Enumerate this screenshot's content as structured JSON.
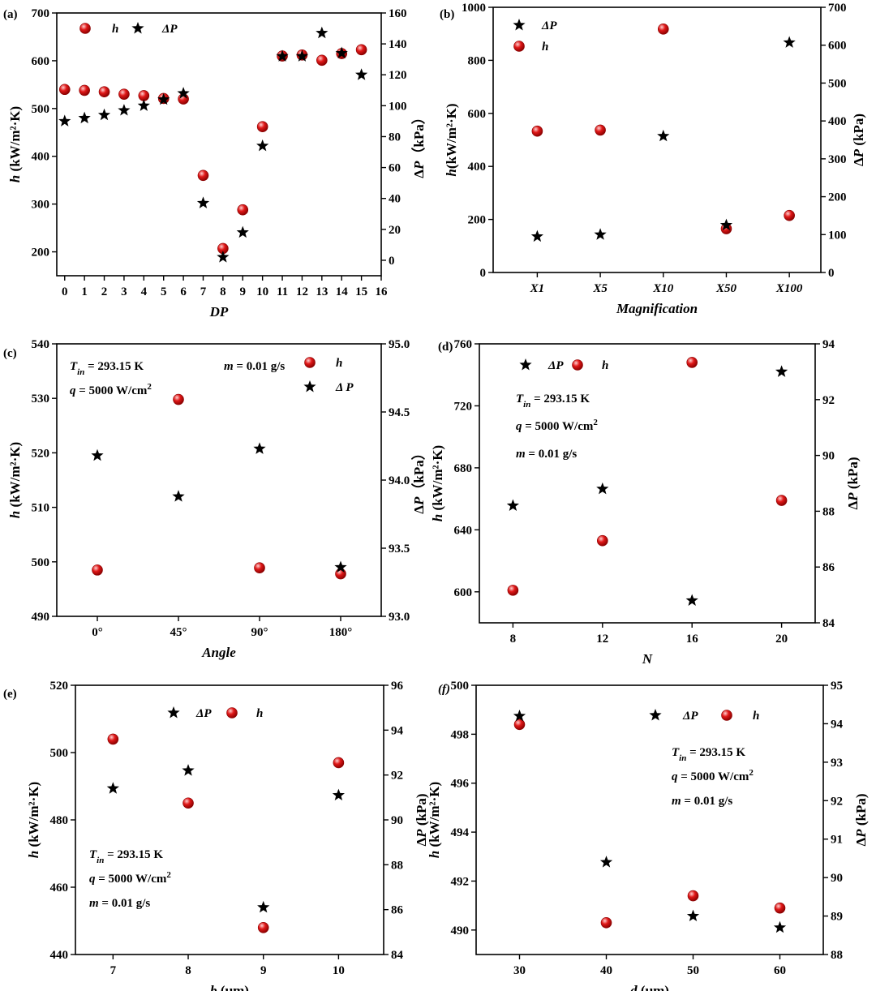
{
  "chart_data": [
    {
      "type": "scatter",
      "panel_label": "(a)",
      "x": [
        0,
        1,
        2,
        3,
        4,
        5,
        6,
        7,
        8,
        9,
        10,
        11,
        12,
        13,
        14,
        15
      ],
      "xticks": [
        "0",
        "1",
        "2",
        "3",
        "4",
        "5",
        "6",
        "7",
        "8",
        "9",
        "10",
        "11",
        "12",
        "13",
        "14",
        "15",
        "16"
      ],
      "xlim": [
        -0.4,
        16
      ],
      "xlabel": "DP",
      "ylabel_left": "h (kW/m²·K)",
      "ylabel_right": "ΔP（kPa）",
      "ylim_left": [
        150,
        700
      ],
      "yticks_left": [
        "200",
        "300",
        "400",
        "500",
        "600",
        "700"
      ],
      "ylim_right": [
        -10,
        160
      ],
      "yticks_right": [
        "0",
        "20",
        "40",
        "60",
        "80",
        "100",
        "120",
        "140",
        "160"
      ],
      "series": [
        {
          "name": "h",
          "axis": "left",
          "marker": "sphere",
          "values": [
            540,
            538,
            535,
            530,
            527,
            521,
            520,
            360,
            207,
            288,
            462,
            610,
            612,
            601,
            615,
            623
          ]
        },
        {
          "name": "ΔP",
          "axis": "right",
          "marker": "star",
          "values": [
            90,
            92,
            94,
            97,
            100,
            104,
            108,
            37,
            2,
            18,
            74,
            132,
            132,
            147,
            134,
            120
          ]
        }
      ],
      "legend": [
        "h",
        "ΔP"
      ],
      "legend_position": "top-left",
      "annotations": []
    },
    {
      "type": "scatter",
      "panel_label": "(b)",
      "x": [
        0,
        1,
        2,
        3,
        4
      ],
      "xticks": [
        "X1",
        "X5",
        "X10",
        "X50",
        "X100"
      ],
      "xlim": [
        -0.7,
        4.5
      ],
      "xlabel": "Magnification",
      "ylabel_left": "h(kW/m²·K)",
      "ylabel_right": "ΔP (kPa)",
      "ylim_left": [
        0,
        1000
      ],
      "yticks_left": [
        "0",
        "200",
        "400",
        "600",
        "800",
        "1000"
      ],
      "ylim_right": [
        0,
        700
      ],
      "yticks_right": [
        "0",
        "100",
        "200",
        "300",
        "400",
        "500",
        "600",
        "700"
      ],
      "series": [
        {
          "name": "h",
          "axis": "left",
          "marker": "sphere",
          "values": [
            533,
            537,
            918,
            165,
            215
          ]
        },
        {
          "name": "ΔP",
          "axis": "right",
          "marker": "star",
          "values": [
            95,
            100,
            360,
            125,
            607
          ]
        }
      ],
      "legend": [
        "ΔP",
        "h"
      ],
      "legend_position": "top-left",
      "annotations": []
    },
    {
      "type": "scatter",
      "panel_label": "(c)",
      "x": [
        0,
        1,
        2,
        3
      ],
      "xticks": [
        "0°",
        "45°",
        "90°",
        "180°"
      ],
      "xlim": [
        -0.5,
        3.5
      ],
      "xlabel": "Angle",
      "ylabel_left": "h (kW/m²·K)",
      "ylabel_right": "ΔP（kPa）",
      "ylim_left": [
        490,
        540
      ],
      "yticks_left": [
        "490",
        "500",
        "510",
        "520",
        "530",
        "540"
      ],
      "ylim_right": [
        93.0,
        95.0
      ],
      "yticks_right": [
        "93.0",
        "93.5",
        "94.0",
        "94.5",
        "95.0"
      ],
      "series": [
        {
          "name": "h",
          "axis": "left",
          "marker": "sphere",
          "values": [
            498.5,
            529.8,
            498.9,
            497.8
          ]
        },
        {
          "name": "Δ P",
          "axis": "right",
          "marker": "star",
          "values": [
            94.18,
            93.88,
            94.23,
            93.36
          ]
        }
      ],
      "legend": [
        "h",
        "Δ P"
      ],
      "legend_position": "top-right",
      "annotations": [
        {
          "parts": [
            [
              "T",
              "i"
            ],
            [
              "in",
              "s"
            ],
            [
              " = 293.15 K",
              "n"
            ]
          ],
          "row": 0,
          "col": 0
        },
        {
          "parts": [
            [
              "m",
              "i"
            ],
            [
              " = 0.01 g/s",
              "n"
            ]
          ],
          "row": 0,
          "col": 1
        },
        {
          "parts": [
            [
              "q",
              "i"
            ],
            [
              " = 5000 W/cm",
              "n"
            ],
            [
              "2",
              "p"
            ]
          ],
          "row": 1,
          "col": 0
        }
      ]
    },
    {
      "type": "scatter",
      "panel_label": "(d)",
      "x": [
        8,
        12,
        16,
        20
      ],
      "xticks": [
        "8",
        "12",
        "16",
        "20"
      ],
      "xlim": [
        6.5,
        21.5
      ],
      "xlabel": "N",
      "ylabel_left": "h (kW/m²·K)",
      "ylabel_right": "ΔP (kPa)",
      "ylim_left": [
        580,
        760
      ],
      "yticks_left": [
        "600",
        "640",
        "680",
        "720",
        "760"
      ],
      "ylim_right": [
        84,
        94
      ],
      "yticks_right": [
        "84",
        "86",
        "88",
        "90",
        "92",
        "94"
      ],
      "series": [
        {
          "name": "h",
          "axis": "left",
          "marker": "sphere",
          "values": [
            601,
            633,
            748,
            659
          ]
        },
        {
          "name": "ΔP",
          "axis": "right",
          "marker": "star",
          "values": [
            88.2,
            88.8,
            84.8,
            93.0
          ]
        }
      ],
      "legend": [
        "ΔP",
        "h"
      ],
      "legend_position": "top-left",
      "annotations": [
        {
          "parts": [
            [
              "T",
              "i"
            ],
            [
              "in",
              "s"
            ],
            [
              " = 293.15 K",
              "n"
            ]
          ],
          "row": 0,
          "col": 0
        },
        {
          "parts": [
            [
              "q",
              "i"
            ],
            [
              " = 5000 W/cm",
              "n"
            ],
            [
              "2",
              "p"
            ]
          ],
          "row": 1,
          "col": 0
        },
        {
          "parts": [
            [
              "m",
              "i"
            ],
            [
              " = 0.01 g/s",
              "n"
            ]
          ],
          "row": 2,
          "col": 0
        }
      ]
    },
    {
      "type": "scatter",
      "panel_label": "(e)",
      "x": [
        7,
        8,
        9,
        10
      ],
      "xticks": [
        "7",
        "8",
        "9",
        "10"
      ],
      "xlim": [
        6.5,
        10.6
      ],
      "xlabel": "b (μm)",
      "ylabel_left": "h (kW/m²·K)",
      "ylabel_right": "ΔP (kPa)",
      "ylim_left": [
        440,
        520
      ],
      "yticks_left": [
        "440",
        "460",
        "480",
        "500",
        "520"
      ],
      "ylim_right": [
        84,
        96
      ],
      "yticks_right": [
        "84",
        "86",
        "88",
        "90",
        "92",
        "94",
        "96"
      ],
      "series": [
        {
          "name": "h",
          "axis": "left",
          "marker": "sphere",
          "values": [
            504,
            485,
            448,
            497
          ]
        },
        {
          "name": "ΔP",
          "axis": "right",
          "marker": "star",
          "values": [
            91.4,
            92.2,
            86.1,
            91.1
          ]
        }
      ],
      "legend": [
        "ΔP",
        "h"
      ],
      "legend_position": "top",
      "annotations": [
        {
          "parts": [
            [
              "T",
              "i"
            ],
            [
              "in",
              "s"
            ],
            [
              " = 293.15 K",
              "n"
            ]
          ],
          "row": 0,
          "col": 0
        },
        {
          "parts": [
            [
              "q",
              "i"
            ],
            [
              " = 5000 W/cm",
              "n"
            ],
            [
              "2",
              "p"
            ]
          ],
          "row": 1,
          "col": 0
        },
        {
          "parts": [
            [
              "m",
              "i"
            ],
            [
              " = 0.01 g/s",
              "n"
            ]
          ],
          "row": 2,
          "col": 0
        }
      ]
    },
    {
      "type": "scatter",
      "panel_label": "(f)",
      "x": [
        30,
        40,
        50,
        60
      ],
      "xticks": [
        "30",
        "40",
        "50",
        "60"
      ],
      "xlim": [
        25,
        65
      ],
      "xlabel": "d (μm)",
      "ylabel_left": "h (kW/m²·K)",
      "ylabel_right": "ΔP (kPa)",
      "ylim_left": [
        489,
        500
      ],
      "yticks_left": [
        "490",
        "492",
        "494",
        "496",
        "498",
        "500"
      ],
      "ylim_right": [
        88,
        95
      ],
      "yticks_right": [
        "88",
        "89",
        "90",
        "91",
        "92",
        "93",
        "94",
        "95"
      ],
      "series": [
        {
          "name": "h",
          "axis": "left",
          "marker": "sphere",
          "values": [
            498.4,
            490.3,
            491.4,
            490.9
          ]
        },
        {
          "name": "ΔP",
          "axis": "right",
          "marker": "star",
          "values": [
            94.2,
            90.4,
            89.0,
            88.7
          ]
        }
      ],
      "legend": [
        "ΔP",
        "h"
      ],
      "legend_position": "top-right",
      "annotations": [
        {
          "parts": [
            [
              "T",
              "i"
            ],
            [
              "in",
              "s"
            ],
            [
              " = 293.15 K",
              "n"
            ]
          ],
          "row": 0,
          "col": 0
        },
        {
          "parts": [
            [
              "q",
              "i"
            ],
            [
              " = 5000 W/cm",
              "n"
            ],
            [
              "2",
              "p"
            ]
          ],
          "row": 1,
          "col": 0
        },
        {
          "parts": [
            [
              "m",
              "i"
            ],
            [
              " = 0.01 g/s",
              "n"
            ]
          ],
          "row": 2,
          "col": 0
        }
      ]
    }
  ],
  "colors": {
    "h_fill": "#e01818",
    "h_shade": "#8a0000",
    "h_highlight": "#ffd0d0",
    "star": "#000000",
    "axis": "#000000"
  }
}
